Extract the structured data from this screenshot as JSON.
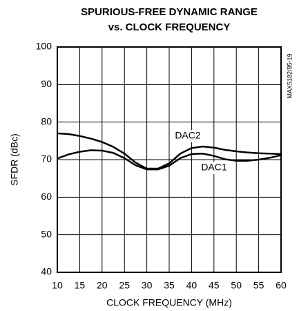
{
  "chart_data": {
    "type": "line",
    "title": [
      "SPURIOUS-FREE DYNAMIC RANGE",
      "vs. CLOCK FREQUENCY"
    ],
    "x_label": "CLOCK FREQUENCY (MHz)",
    "y_label": "SFDR (dBc)",
    "annotation": "MAX5182/85-19",
    "x": [
      10,
      12.5,
      15,
      17.5,
      20,
      22.5,
      25,
      27.5,
      30,
      32.5,
      35,
      37.5,
      40,
      42.5,
      45,
      47.5,
      50,
      52.5,
      55,
      57.5,
      60
    ],
    "series": [
      {
        "name": "DAC2",
        "color": "#000000",
        "values": [
          77,
          76.8,
          76.3,
          75.6,
          74.7,
          73.4,
          71.6,
          69.2,
          67.6,
          67.6,
          69,
          71.6,
          73.1,
          73.5,
          73.2,
          72.6,
          72.2,
          71.9,
          71.7,
          71.6,
          71.5
        ]
      },
      {
        "name": "DAC1",
        "color": "#000000",
        "values": [
          70.3,
          71.4,
          72.1,
          72.5,
          72.4,
          71.8,
          70.4,
          68.5,
          67.4,
          67.4,
          68.4,
          70.4,
          71.5,
          71.6,
          71,
          70.1,
          69.7,
          69.7,
          70,
          70.5,
          71.2
        ]
      }
    ],
    "xlim": [
      10,
      60
    ],
    "xticks": [
      10,
      15,
      20,
      25,
      30,
      35,
      40,
      45,
      50,
      55,
      60
    ],
    "ylim": [
      40,
      100
    ],
    "yticks": [
      40,
      50,
      60,
      70,
      80,
      90,
      100
    ],
    "grid": true
  }
}
